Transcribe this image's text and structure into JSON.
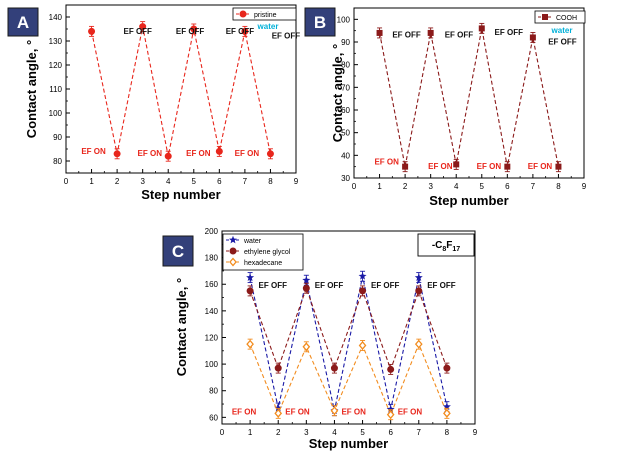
{
  "chart_data": [
    {
      "id": "A",
      "type": "line",
      "panel_label": "A",
      "xlabel": "Step number",
      "ylabel": "Contact angle, °",
      "xlim": [
        0,
        9
      ],
      "ylim": [
        75,
        145
      ],
      "x_ticks": [
        0,
        1,
        2,
        3,
        4,
        5,
        6,
        7,
        8,
        9
      ],
      "y_ticks": [
        80,
        90,
        100,
        110,
        120,
        130,
        140
      ],
      "grid": false,
      "legend_position": "top-right",
      "liquid_label": "water",
      "series": [
        {
          "name": "pristine",
          "color": "#e8261c",
          "marker": "circle",
          "x": [
            1,
            2,
            3,
            4,
            5,
            6,
            7,
            8
          ],
          "y": [
            134,
            83,
            136,
            82,
            135,
            84,
            134,
            83
          ]
        }
      ],
      "annotations": [
        {
          "text": "EF OFF",
          "x": 2.25,
          "y": 133,
          "color": "#111111"
        },
        {
          "text": "EF OFF",
          "x": 4.3,
          "y": 133,
          "color": "#111111"
        },
        {
          "text": "EF OFF",
          "x": 6.25,
          "y": 133,
          "color": "#111111"
        },
        {
          "text": "EF OFF",
          "x": 8.05,
          "y": 131,
          "color": "#111111"
        },
        {
          "text": "EF ON",
          "x": 0.6,
          "y": 83,
          "color": "#e8261c"
        },
        {
          "text": "EF ON",
          "x": 2.8,
          "y": 82,
          "color": "#e8261c"
        },
        {
          "text": "EF ON",
          "x": 4.7,
          "y": 82,
          "color": "#e8261c"
        },
        {
          "text": "EF ON",
          "x": 6.6,
          "y": 82,
          "color": "#e8261c"
        }
      ]
    },
    {
      "id": "B",
      "type": "line",
      "panel_label": "B",
      "xlabel": "Step number",
      "ylabel": "Contact angle, °",
      "xlim": [
        0,
        9
      ],
      "ylim": [
        30,
        105
      ],
      "x_ticks": [
        0,
        1,
        2,
        3,
        4,
        5,
        6,
        7,
        8,
        9
      ],
      "y_ticks": [
        30,
        40,
        50,
        60,
        70,
        80,
        90,
        100
      ],
      "grid": false,
      "legend_position": "top-right",
      "liquid_label": "water",
      "series": [
        {
          "name": "COOH",
          "color": "#8b1a1a",
          "marker": "square",
          "x": [
            1,
            2,
            3,
            4,
            5,
            6,
            7,
            8
          ],
          "y": [
            94,
            35,
            94,
            36,
            96,
            35,
            92,
            35
          ]
        }
      ],
      "annotations": [
        {
          "text": "EF OFF",
          "x": 1.5,
          "y": 92,
          "color": "#111111"
        },
        {
          "text": "EF OFF",
          "x": 3.55,
          "y": 92,
          "color": "#111111"
        },
        {
          "text": "EF OFF",
          "x": 5.5,
          "y": 93,
          "color": "#111111"
        },
        {
          "text": "EF OFF",
          "x": 7.6,
          "y": 89,
          "color": "#111111"
        },
        {
          "text": "EF ON",
          "x": 0.8,
          "y": 36,
          "color": "#e8261c"
        },
        {
          "text": "EF ON",
          "x": 2.9,
          "y": 34,
          "color": "#e8261c"
        },
        {
          "text": "EF ON",
          "x": 4.8,
          "y": 34,
          "color": "#e8261c"
        },
        {
          "text": "EF ON",
          "x": 6.8,
          "y": 34,
          "color": "#e8261c"
        }
      ]
    },
    {
      "id": "C",
      "type": "line",
      "panel_label": "C",
      "xlabel": "Step number",
      "ylabel": "Contact angle, °",
      "xlim": [
        0,
        9
      ],
      "ylim": [
        55,
        200
      ],
      "x_ticks": [
        0,
        1,
        2,
        3,
        4,
        5,
        6,
        7,
        8,
        9
      ],
      "y_ticks": [
        60,
        80,
        100,
        120,
        140,
        160,
        180,
        200
      ],
      "grid": false,
      "legend_position": "top-left",
      "inset_label": "-C8F17",
      "series": [
        {
          "name": "water",
          "color": "#1a1aa6",
          "marker": "star",
          "x": [
            1,
            2,
            3,
            4,
            5,
            6,
            7,
            8
          ],
          "y": [
            165,
            67,
            163,
            65,
            166,
            66,
            165,
            68
          ]
        },
        {
          "name": "ethylene glycol",
          "color": "#8b1a1a",
          "marker": "circle",
          "x": [
            1,
            2,
            3,
            4,
            5,
            6,
            7,
            8
          ],
          "y": [
            155,
            97,
            157,
            97,
            155,
            96,
            155,
            97
          ]
        },
        {
          "name": "hexadecane",
          "color": "#f28c1e",
          "marker": "diamond",
          "x": [
            1,
            2,
            3,
            4,
            5,
            6,
            7,
            8
          ],
          "y": [
            115,
            63,
            113,
            65,
            114,
            62,
            115,
            63
          ]
        }
      ],
      "annotations": [
        {
          "text": "EF OFF",
          "x": 1.3,
          "y": 157,
          "color": "#111111"
        },
        {
          "text": "EF OFF",
          "x": 3.3,
          "y": 157,
          "color": "#111111"
        },
        {
          "text": "EF OFF",
          "x": 5.3,
          "y": 157,
          "color": "#111111"
        },
        {
          "text": "EF OFF",
          "x": 7.3,
          "y": 157,
          "color": "#111111"
        },
        {
          "text": "EF ON",
          "x": 0.35,
          "y": 62,
          "color": "#e8261c"
        },
        {
          "text": "EF ON",
          "x": 2.25,
          "y": 62,
          "color": "#e8261c"
        },
        {
          "text": "EF ON",
          "x": 4.25,
          "y": 62,
          "color": "#e8261c"
        },
        {
          "text": "EF ON",
          "x": 6.25,
          "y": 62,
          "color": "#e8261c"
        }
      ]
    }
  ],
  "colors": {
    "panel_label_bg": "#33407a",
    "panel_label_text": "#ffffff",
    "water_label": "#00b0d8"
  }
}
